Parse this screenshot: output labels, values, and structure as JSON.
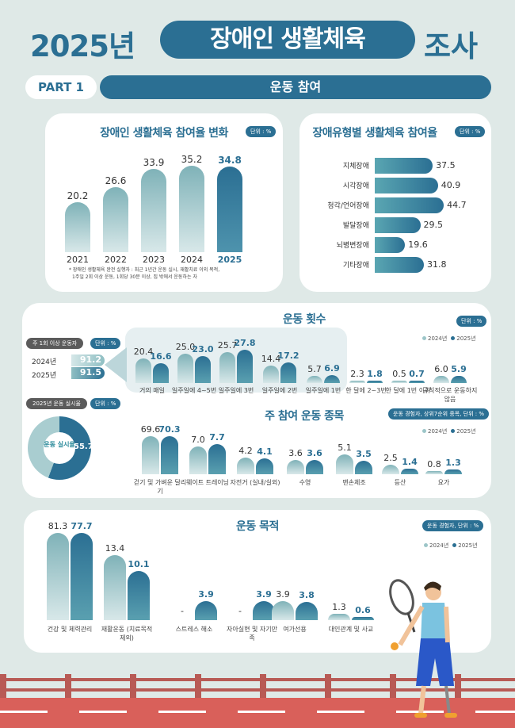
{
  "header": {
    "year": "2025년",
    "highlight": "장애인 생활체육",
    "suffix": "조사"
  },
  "part": {
    "label": "PART 1",
    "title": "운동 참여"
  },
  "colors": {
    "primary": "#2b6f93",
    "light": "#8fbfc3",
    "bg": "#dfe9e7",
    "road": "#d9605a"
  },
  "legend": {
    "y2024": "2024년",
    "y2025": "2025년"
  },
  "unit": "단위 : %",
  "participation": {
    "note_line1": "* 장애인 생활체육 완전 실행자 : 최근 1년간 운동 실시, 재활치료 이외 목적,",
    "note_line2": "1주일 2회 이상 운동, 1회당 30분 이상, 집 밖에서 운동하는 자"
  },
  "weekly": {
    "label": "주 1회 이상 운동자",
    "rows": [
      {
        "year": "2024년",
        "value": "91.2"
      },
      {
        "year": "2025년",
        "value": "91.5"
      }
    ]
  },
  "donut": {
    "label": "2025년 운동 실시율",
    "center": "운동 실시율",
    "value": "55.7"
  },
  "sports": {
    "unit": "운동 경험자, 상위7순위 종목, 단위 : %"
  },
  "purpose": {
    "unit": "운동 경험자, 단위 : %"
  },
  "chart_data": [
    {
      "type": "bar",
      "title": "장애인 생활체육 참여율 변화",
      "unit": "%",
      "categories": [
        "2021",
        "2022",
        "2023",
        "2024",
        "2025"
      ],
      "values": [
        20.2,
        26.6,
        33.9,
        35.2,
        34.8
      ]
    },
    {
      "type": "bar",
      "orientation": "horizontal",
      "title": "장애유형별 생활체육 참여율",
      "unit": "%",
      "categories": [
        "지체장애",
        "시각장애",
        "청각/언어장애",
        "발달장애",
        "뇌병변장애",
        "기타장애"
      ],
      "values": [
        37.5,
        40.9,
        44.7,
        29.5,
        19.6,
        31.8
      ]
    },
    {
      "type": "bar",
      "title": "운동 횟수",
      "unit": "%",
      "categories": [
        "거의 매일",
        "일주일에 4~5번",
        "일주일에 3번",
        "일주일에 2번",
        "일주일에 1번",
        "한 달에 2~3번",
        "한 달에 1번 이하",
        "규칙적으로 운동하지 않음"
      ],
      "series": [
        {
          "name": "2024년",
          "values": [
            20.4,
            25.0,
            25.7,
            14.4,
            5.7,
            2.3,
            0.5,
            6.0
          ]
        },
        {
          "name": "2025년",
          "values": [
            16.6,
            23.0,
            27.8,
            17.2,
            6.9,
            1.8,
            0.7,
            5.9
          ]
        }
      ]
    },
    {
      "type": "pie",
      "title": "2025년 운동 실시율",
      "values": [
        55.7,
        44.3
      ]
    },
    {
      "type": "bar",
      "title": "주 참여 운동 종목",
      "unit": "%",
      "categories": [
        "걷기 및 가벼운 달리기",
        "웨이트 트레이닝",
        "자전거 (실내/실외)",
        "수영",
        "맨손체조",
        "등산",
        "요가"
      ],
      "series": [
        {
          "name": "2024년",
          "values": [
            69.6,
            7.0,
            4.2,
            3.6,
            5.1,
            2.5,
            0.8
          ]
        },
        {
          "name": "2025년",
          "values": [
            70.3,
            7.7,
            4.1,
            3.6,
            3.5,
            1.4,
            1.3
          ]
        }
      ]
    },
    {
      "type": "bar",
      "title": "운동 목적",
      "unit": "%",
      "categories": [
        "건강 및 체력관리",
        "재활운동 (치료목적 제외)",
        "스트레스 해소",
        "자아실현 및 자기만족",
        "여가선용",
        "대인관계 및 사교"
      ],
      "series": [
        {
          "name": "2024년",
          "values": [
            81.3,
            13.4,
            null,
            null,
            3.9,
            1.3
          ]
        },
        {
          "name": "2025년",
          "values": [
            77.7,
            10.1,
            3.9,
            3.9,
            3.8,
            0.6
          ]
        }
      ]
    }
  ]
}
